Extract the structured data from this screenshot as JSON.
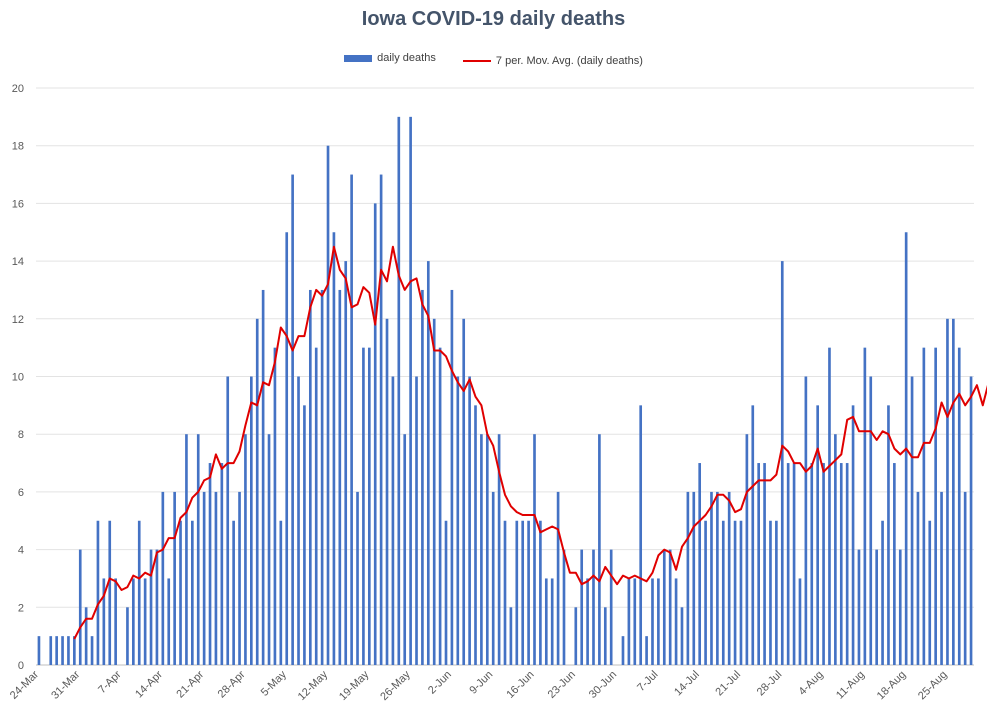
{
  "chart_data": {
    "type": "bar",
    "title": "Iowa COVID-19 daily deaths",
    "xlabel": "",
    "ylabel": "",
    "ylim": [
      0,
      20
    ],
    "yticks": [
      0,
      2,
      4,
      6,
      8,
      10,
      12,
      14,
      16,
      18,
      20
    ],
    "xtick_labels": [
      "24-Mar",
      "31-Mar",
      "7-Apr",
      "14-Apr",
      "21-Apr",
      "28-Apr",
      "5-May",
      "12-May",
      "19-May",
      "26-May",
      "2-Jun",
      "9-Jun",
      "16-Jun",
      "23-Jun",
      "30-Jun",
      "7-Jul",
      "14-Jul",
      "21-Jul",
      "28-Jul",
      "4-Aug",
      "11-Aug",
      "18-Aug",
      "25-Aug"
    ],
    "start_date": "24-Mar",
    "grid": true,
    "legend_position": "top",
    "series": [
      {
        "name": "daily deaths",
        "kind": "bar",
        "color": "#4472c4",
        "values": [
          1,
          0,
          1,
          1,
          1,
          1,
          1,
          4,
          2,
          1,
          5,
          3,
          5,
          3,
          0,
          2,
          3,
          5,
          3,
          4,
          4,
          6,
          3,
          6,
          5,
          8,
          5,
          8,
          6,
          7,
          6,
          7,
          10,
          5,
          6,
          8,
          10,
          12,
          13,
          8,
          11,
          5,
          15,
          17,
          10,
          9,
          13,
          11,
          13,
          18,
          15,
          13,
          14,
          17,
          6,
          11,
          11,
          16,
          17,
          12,
          10,
          19,
          8,
          19,
          10,
          13,
          14,
          12,
          11,
          5,
          13,
          10,
          12,
          10,
          9,
          8,
          8,
          6,
          8,
          5,
          2,
          5,
          5,
          5,
          8,
          5,
          3,
          3,
          6,
          4,
          0,
          2,
          4,
          3,
          4,
          8,
          2,
          4,
          0,
          1,
          3,
          3,
          9,
          1,
          3,
          3,
          4,
          4,
          3,
          2,
          6,
          6,
          7,
          5,
          6,
          6,
          5,
          6,
          5,
          5,
          8,
          9,
          7,
          7,
          5,
          5,
          14,
          7,
          7,
          3,
          10,
          7,
          9,
          7,
          11,
          8,
          7,
          7,
          9,
          4,
          11,
          10,
          4,
          5,
          9,
          7,
          4,
          15,
          10,
          6,
          11,
          5,
          11,
          6,
          12,
          12,
          11,
          6,
          10
        ]
      },
      {
        "name": "7 per. Mov. Avg. (daily deaths)",
        "kind": "line",
        "color": "#e00000",
        "start_index": 6,
        "values": [
          0.9,
          1.3,
          1.6,
          1.6,
          2.1,
          2.4,
          3.0,
          2.9,
          2.6,
          2.7,
          3.1,
          3.0,
          3.2,
          3.1,
          3.9,
          4.0,
          4.4,
          4.4,
          5.1,
          5.3,
          5.8,
          6.0,
          6.4,
          6.5,
          7.3,
          6.8,
          7.0,
          7.0,
          7.4,
          8.3,
          9.1,
          9.0,
          9.8,
          9.7,
          10.5,
          11.7,
          11.4,
          10.9,
          11.4,
          11.4,
          12.4,
          13.0,
          12.8,
          13.2,
          14.5,
          13.7,
          13.4,
          12.4,
          12.5,
          13.1,
          12.9,
          11.8,
          13.7,
          13.3,
          14.5,
          13.5,
          13.0,
          13.3,
          13.4,
          12.5,
          12.1,
          10.9,
          10.9,
          10.7,
          10.2,
          9.8,
          9.5,
          9.9,
          9.3,
          9.0,
          8.0,
          7.6,
          6.7,
          5.9,
          5.5,
          5.3,
          5.2,
          5.2,
          5.2,
          4.6,
          4.7,
          4.8,
          4.7,
          3.9,
          3.2,
          3.2,
          2.8,
          2.9,
          3.1,
          2.9,
          3.4,
          3.1,
          2.8,
          3.1,
          3.0,
          3.1,
          3.0,
          2.9,
          3.2,
          3.8,
          4.0,
          3.9,
          3.3,
          4.1,
          4.4,
          4.8,
          5.0,
          5.2,
          5.5,
          5.9,
          5.9,
          5.7,
          5.3,
          5.4,
          6.0,
          6.2,
          6.4,
          6.4,
          6.4,
          6.6,
          7.6,
          7.4,
          7.0,
          7.0,
          6.7,
          6.9,
          7.5,
          6.7,
          6.9,
          7.1,
          7.3,
          8.5,
          8.6,
          8.1,
          8.1,
          8.1,
          7.8,
          8.1,
          8.0,
          7.5,
          7.3,
          7.5,
          7.2,
          7.2,
          7.7,
          7.7,
          8.2,
          9.1,
          8.6,
          9.1,
          9.4,
          9.0,
          9.3,
          9.7,
          9.0,
          9.8
        ]
      }
    ]
  }
}
